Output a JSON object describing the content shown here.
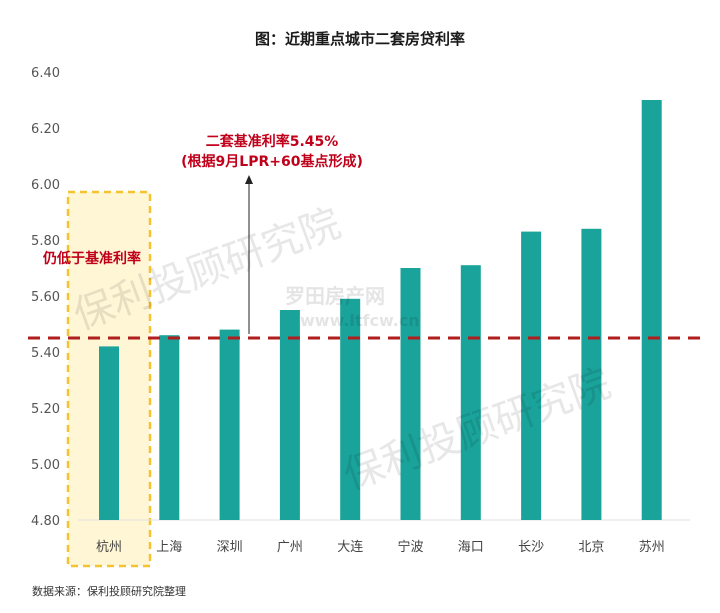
{
  "chart_data": {
    "type": "bar",
    "title": "图：近期重点城市二套房贷利率",
    "categories": [
      "杭州",
      "上海",
      "深圳",
      "广州",
      "大连",
      "宁波",
      "海口",
      "长沙",
      "北京",
      "苏州"
    ],
    "values": [
      5.42,
      5.46,
      5.48,
      5.55,
      5.59,
      5.7,
      5.71,
      5.83,
      5.84,
      6.3
    ],
    "yticks": [
      "4.80",
      "5.00",
      "5.20",
      "5.40",
      "5.60",
      "5.80",
      "6.00",
      "6.20",
      "6.40"
    ],
    "ylim": [
      4.8,
      6.4
    ],
    "bar_color": "#1aa39a",
    "reference_line": {
      "value": 5.45,
      "color": "#b01e1e",
      "style": "dashed"
    },
    "highlight": {
      "category": "杭州",
      "fill": "#fff6d6",
      "border": "#f4c430"
    },
    "annotations": {
      "line1": "二套基准利率5.45%",
      "line2": "(根据9月LPR+60基点形成)",
      "highlight_note": "仍低于基准利率"
    },
    "grid": false,
    "legend": "none"
  },
  "source": "数据来源：保利投顾研究院整理",
  "watermarks": [
    "保利投顾研究院",
    "保利投顾研究院",
    "罗田房产网",
    "www.ltfcw.cn"
  ]
}
